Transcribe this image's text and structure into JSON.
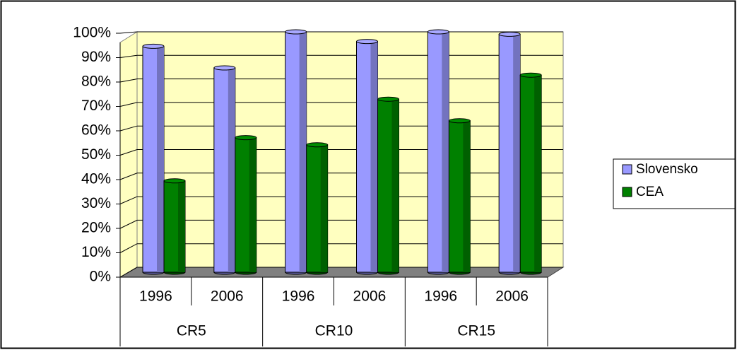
{
  "chart_data": {
    "type": "bar3d",
    "categories": [
      "1996",
      "2006",
      "1996",
      "2006",
      "1996",
      "2006"
    ],
    "groups": [
      "CR5",
      "CR10",
      "CR15"
    ],
    "series": [
      {
        "name": "Slovensko",
        "color": "#9999ff",
        "values": [
          94,
          85,
          100,
          96,
          100,
          99
        ]
      },
      {
        "name": "CEA",
        "color": "#008000",
        "values": [
          38,
          56,
          53,
          72,
          63,
          82
        ]
      }
    ],
    "ylim": [
      0,
      100
    ],
    "yticks": [
      {
        "value": 0,
        "label": "0%"
      },
      {
        "value": 10,
        "label": "10%"
      },
      {
        "value": 20,
        "label": "20%"
      },
      {
        "value": 30,
        "label": "30%"
      },
      {
        "value": 40,
        "label": "40%"
      },
      {
        "value": 50,
        "label": "50%"
      },
      {
        "value": 60,
        "label": "60%"
      },
      {
        "value": 70,
        "label": "70%"
      },
      {
        "value": 80,
        "label": "80%"
      },
      {
        "value": 90,
        "label": "90%"
      },
      {
        "value": 100,
        "label": "100%"
      }
    ],
    "grid": true,
    "legend": "right"
  }
}
